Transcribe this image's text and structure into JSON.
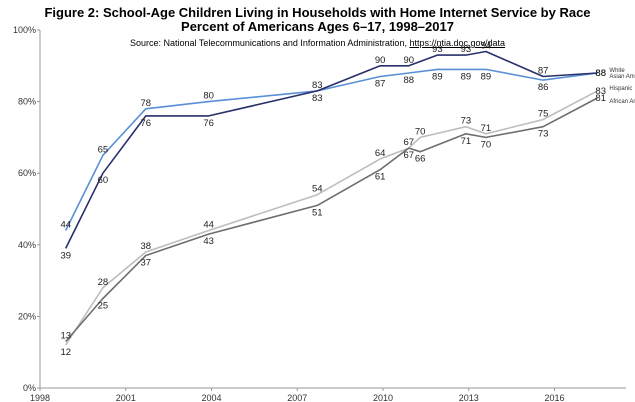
{
  "chart_data": {
    "type": "line",
    "title_line1": "Figure 2: School-Age Children Living in Households with Home Internet Service by Race",
    "title_line2": "Percent of Americans Ages 6–17, 1998–2017",
    "source_prefix": "Source: National Telecommunications and Information Administration, ",
    "source_link": "https://ntia.doc.gov/data",
    "xlim": [
      1998,
      2018.5
    ],
    "ylim": [
      0,
      100
    ],
    "x_ticks": [
      1998,
      2001,
      2004,
      2007,
      2010,
      2013,
      2016
    ],
    "y_ticks": [
      0,
      20,
      40,
      60,
      80,
      100
    ],
    "y_tick_labels": [
      "0%",
      "20%",
      "40%",
      "60%",
      "80%",
      "100%"
    ],
    "series": [
      {
        "name": "White",
        "color": "#27306a",
        "x": [
          1998.9,
          2000.2,
          2001.7,
          2003.9,
          2007.7,
          2009.9,
          2010.9,
          2011.9,
          2012.9,
          2013.6,
          2015.6,
          2017.5
        ],
        "values": [
          39,
          60,
          76,
          76,
          83,
          90,
          90,
          93,
          93,
          94,
          87,
          88
        ]
      },
      {
        "name": "Asian American",
        "color": "#5a8fd6",
        "x": [
          1998.9,
          2000.2,
          2001.7,
          2003.9,
          2007.7,
          2009.9,
          2010.9,
          2011.9,
          2012.9,
          2013.6,
          2015.6,
          2017.5
        ],
        "values": [
          44,
          65,
          78,
          80,
          83,
          87,
          88,
          89,
          89,
          89,
          86,
          88
        ]
      },
      {
        "name": "Hispanic",
        "color": "#bdbdbd",
        "x": [
          1998.9,
          2000.2,
          2001.7,
          2003.9,
          2007.7,
          2009.9,
          2010.9,
          2011.3,
          2012.9,
          2013.6,
          2015.6,
          2017.5
        ],
        "values": [
          12,
          28,
          38,
          44,
          54,
          64,
          67,
          70,
          73,
          71,
          75,
          83
        ]
      },
      {
        "name": "African American",
        "color": "#6e6e6e",
        "x": [
          1998.9,
          2000.2,
          2001.7,
          2003.9,
          2007.7,
          2009.9,
          2010.9,
          2011.3,
          2012.9,
          2013.6,
          2015.6,
          2017.5
        ],
        "values": [
          13,
          25,
          37,
          43,
          51,
          61,
          67,
          66,
          71,
          70,
          73,
          81
        ]
      }
    ],
    "end_labels": [
      {
        "series": "White",
        "text": "White"
      },
      {
        "series": "Asian American",
        "text": "Asian American"
      },
      {
        "series": "Hispanic",
        "text": "Hispanic"
      },
      {
        "series": "African American",
        "text": "African American"
      }
    ]
  }
}
